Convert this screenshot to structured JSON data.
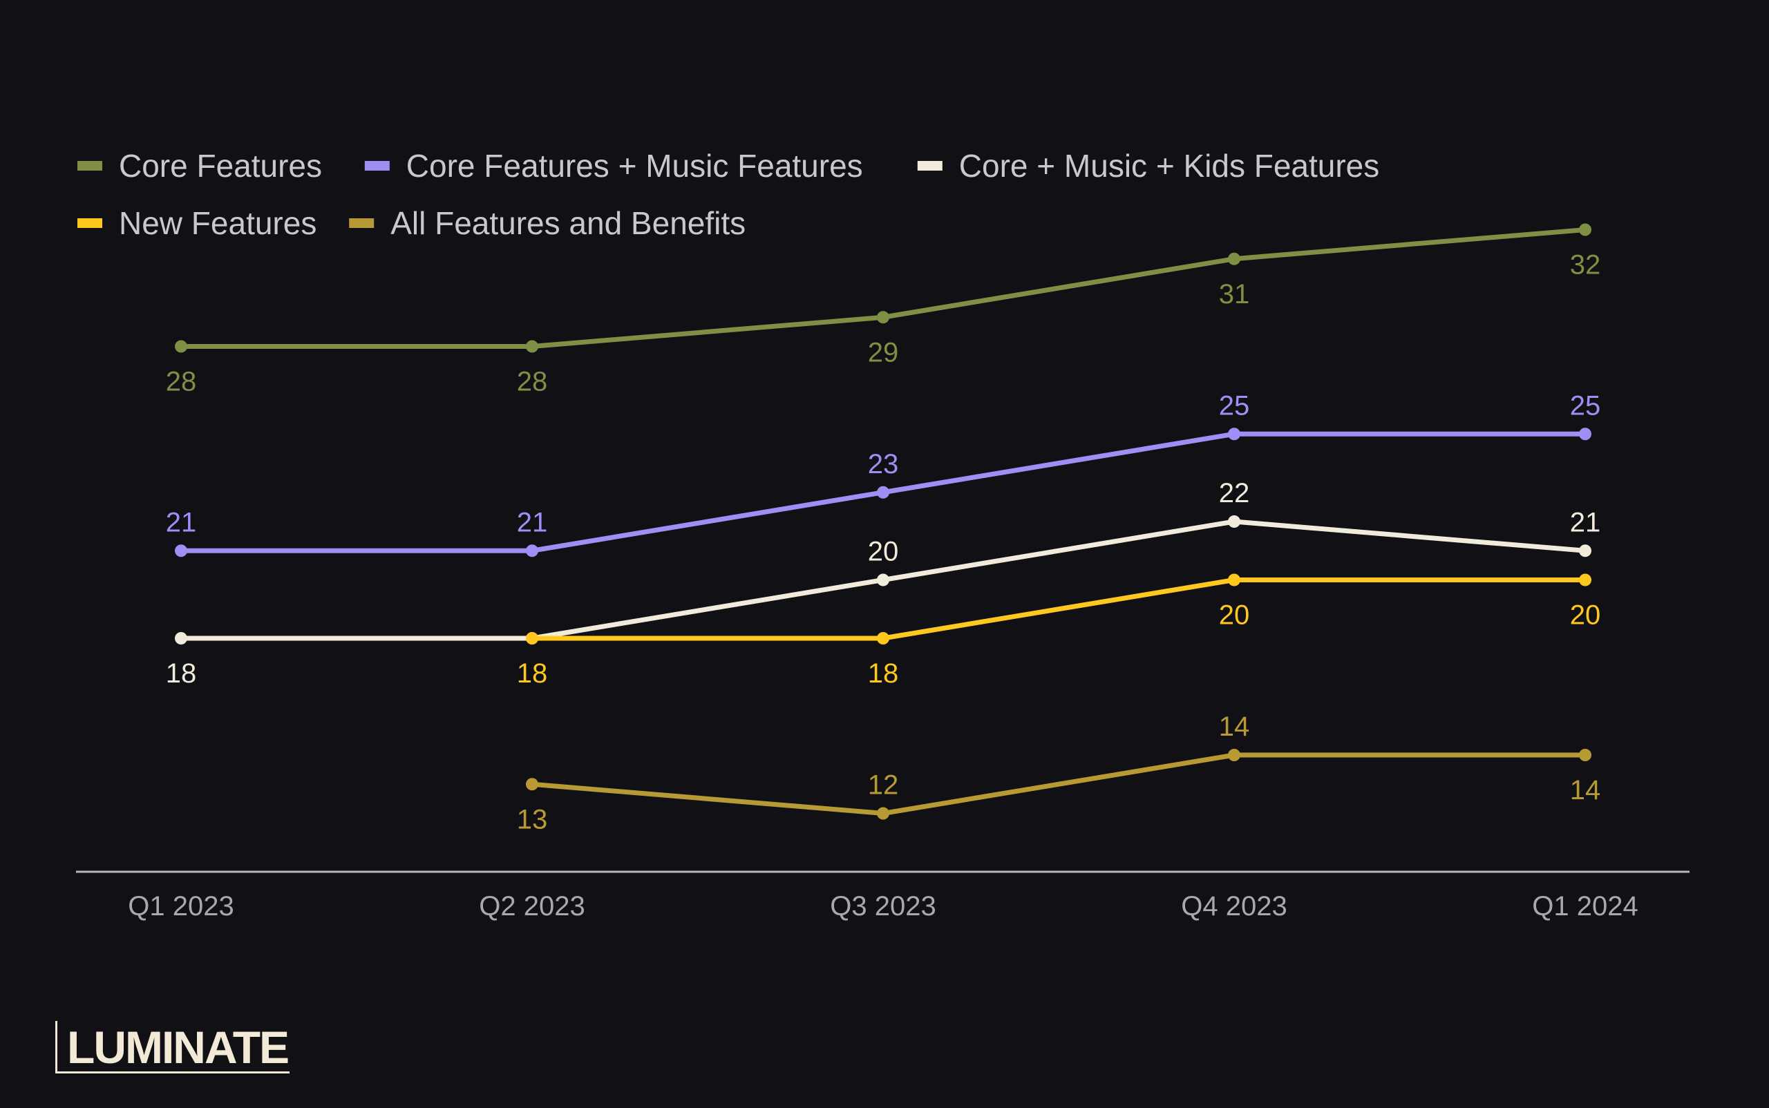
{
  "brand": "LUMINATE",
  "chart_data": {
    "type": "line",
    "categories": [
      "Q1 2023",
      "Q2 2023",
      "Q3 2023",
      "Q4 2023",
      "Q1 2024"
    ],
    "ylim": [
      10,
      34
    ],
    "grid": false,
    "legend_position": "top-left",
    "series": [
      {
        "name": "Core Features",
        "color": "#7f8f44",
        "values": [
          28,
          28,
          29,
          31,
          32
        ],
        "label_pos": [
          "below",
          "below",
          "below",
          "below",
          "below"
        ]
      },
      {
        "name": "Core Features + Music Features",
        "color": "#9f8ff5",
        "values": [
          21,
          21,
          23,
          25,
          25
        ],
        "label_pos": [
          "above",
          "above",
          "above",
          "above",
          "above"
        ]
      },
      {
        "name": "Core + Music + Kids Features",
        "color": "#f1ebdc",
        "values": [
          18,
          18,
          20,
          22,
          21
        ],
        "label_pos": [
          "below",
          "none",
          "above",
          "above",
          "above"
        ]
      },
      {
        "name": "New Features",
        "color": "#ffc81e",
        "values": [
          null,
          18,
          18,
          20,
          20
        ],
        "label_pos": [
          "none",
          "below",
          "below",
          "below",
          "below"
        ]
      },
      {
        "name": "All Features and Benefits",
        "color": "#b89a35",
        "values": [
          null,
          13,
          12,
          14,
          14
        ],
        "label_pos": [
          "none",
          "below",
          "above",
          "above",
          "below"
        ]
      }
    ]
  }
}
